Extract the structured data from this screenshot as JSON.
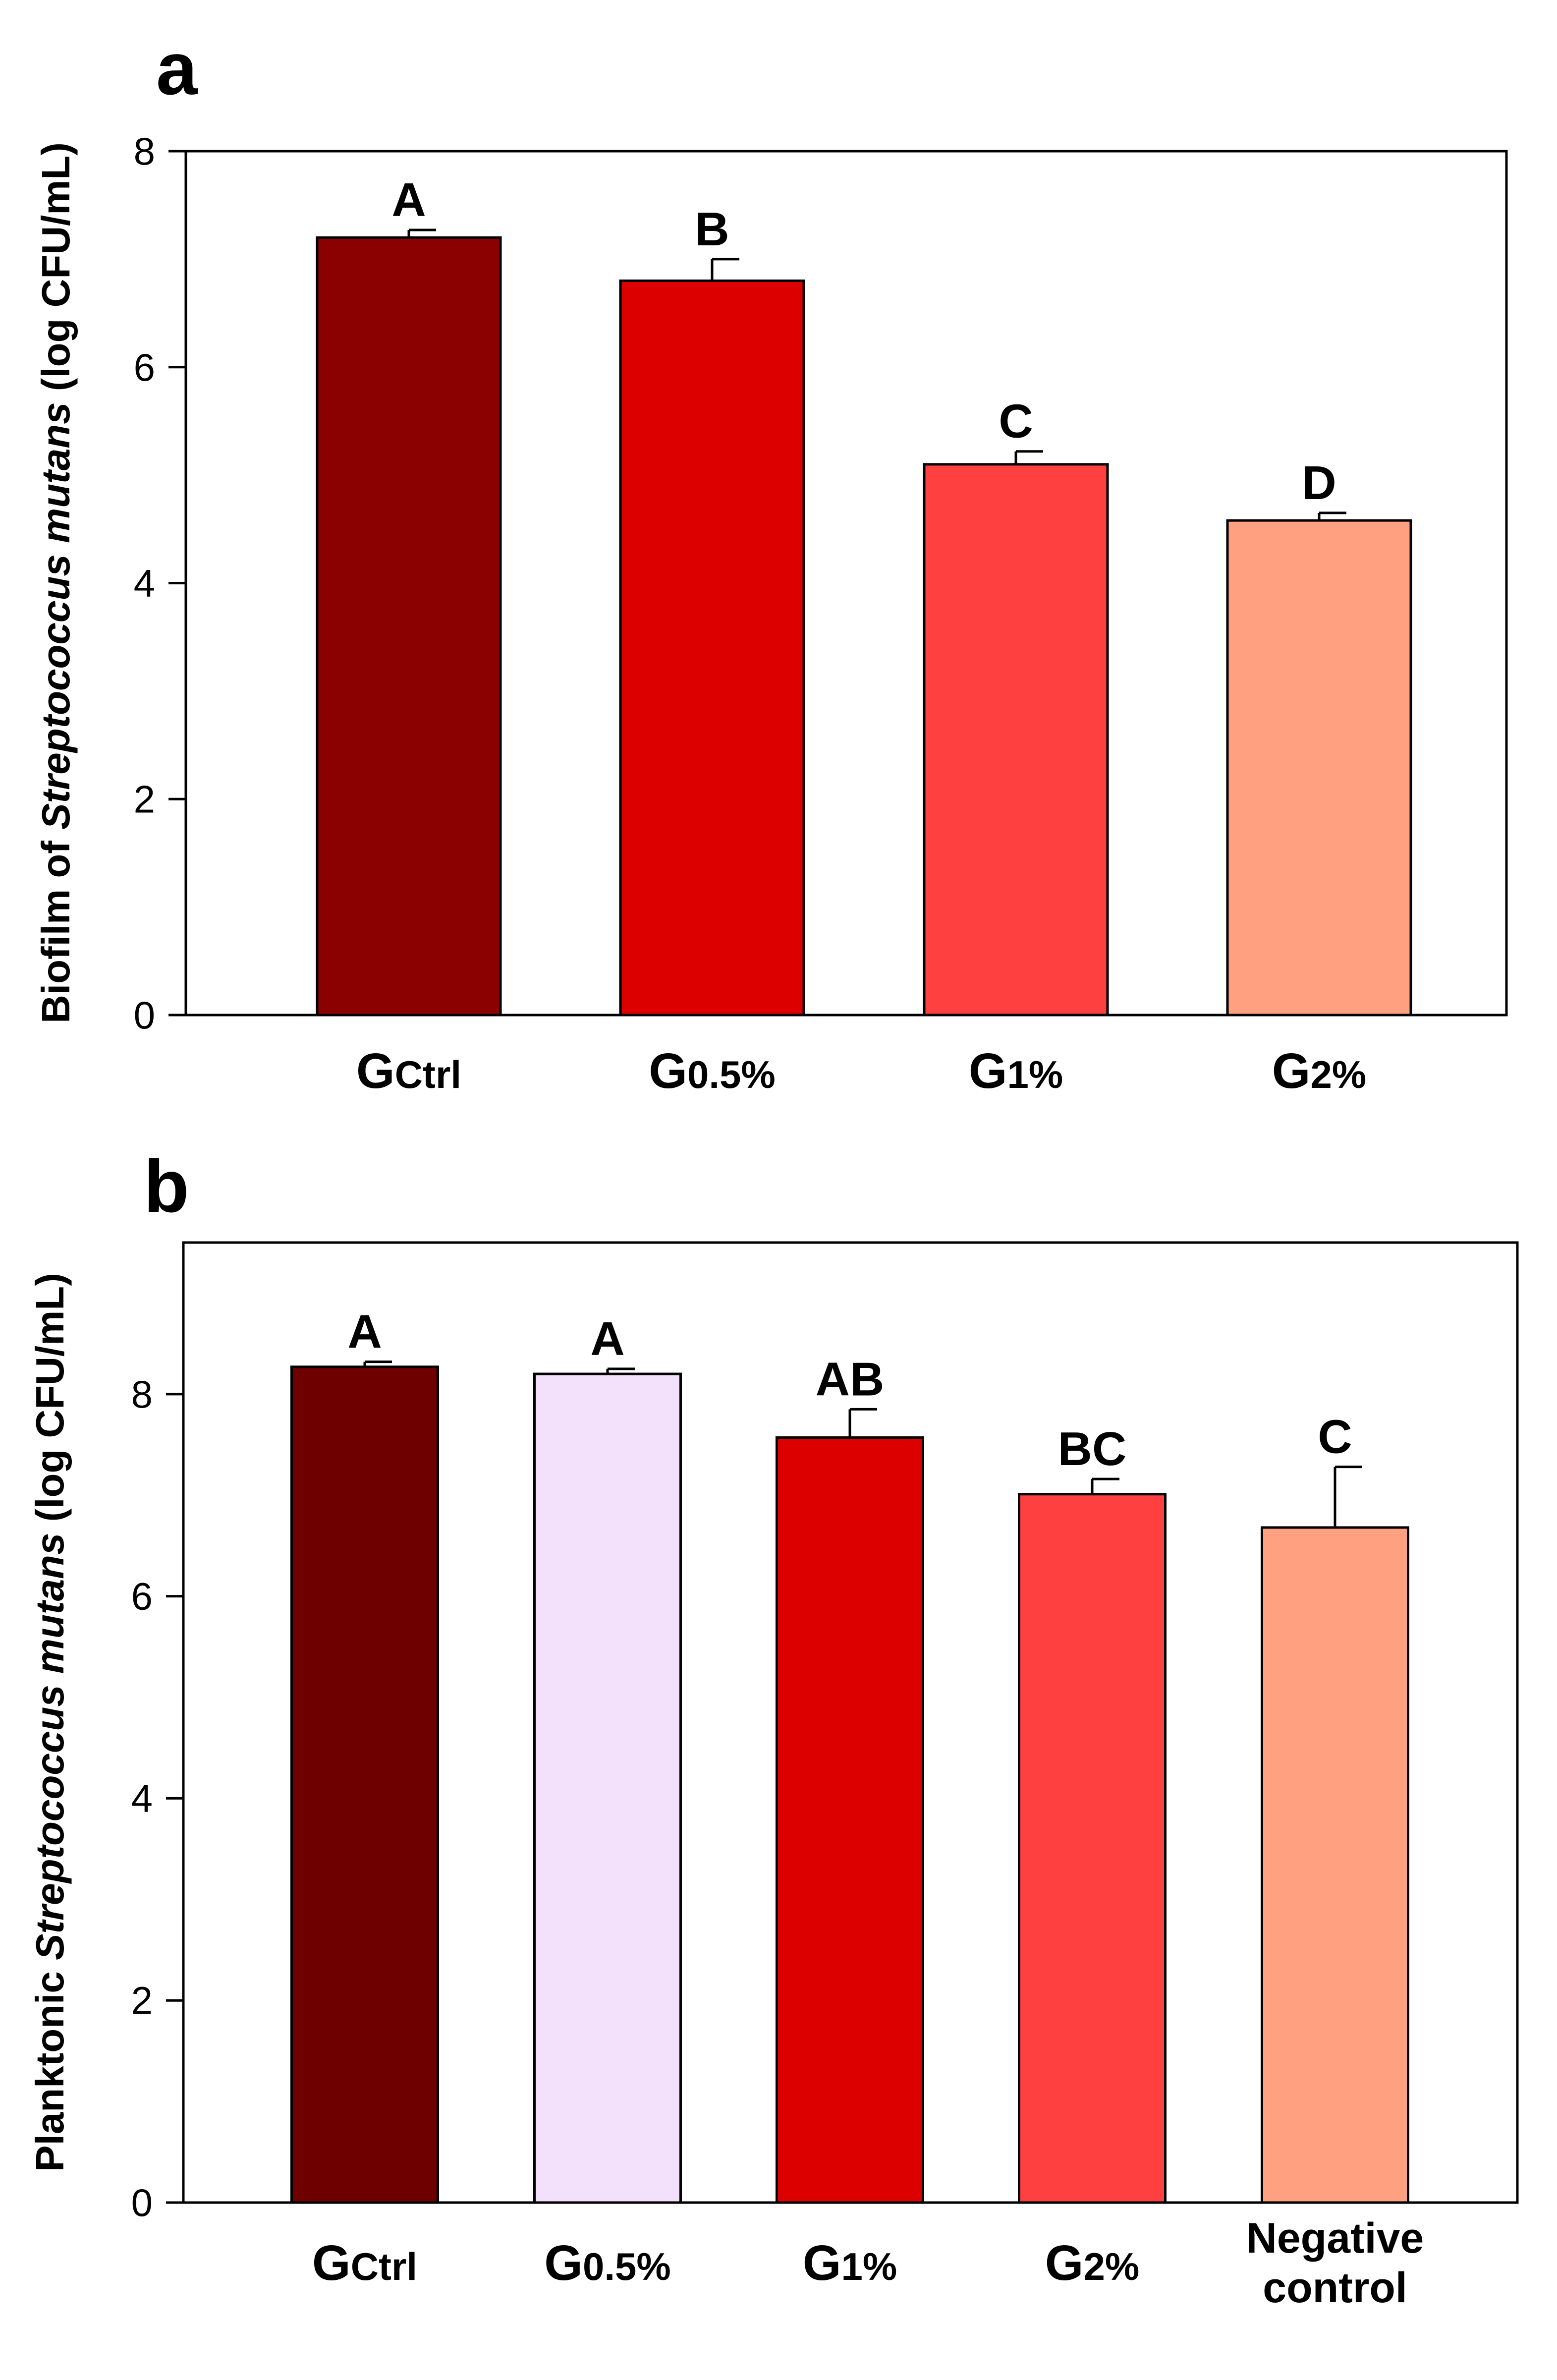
{
  "chart_data": [
    {
      "type": "bar",
      "panel": "a",
      "ylabel_parts": [
        "Biofilm of ",
        "Streptococcus mutans",
        " (log CFU/mL)"
      ],
      "ylim": [
        0,
        8
      ],
      "yticks": [
        0,
        2,
        4,
        6,
        8
      ],
      "categories": [
        {
          "main": "G",
          "sub": "Ctrl"
        },
        {
          "main": "G",
          "sub": "0.5%"
        },
        {
          "main": "G",
          "sub": "1%"
        },
        {
          "main": "G",
          "sub": "2%"
        }
      ],
      "values": [
        7.2,
        6.8,
        5.1,
        4.58
      ],
      "errors": [
        0.07,
        0.2,
        0.12,
        0.07
      ],
      "significance": [
        "A",
        "B",
        "C",
        "D"
      ],
      "colors": [
        "#8b0000",
        "#dd0000",
        "#ff4040",
        "#ffa080"
      ]
    },
    {
      "type": "bar",
      "panel": "b",
      "ylabel_parts": [
        "Planktonic ",
        "Streptococcus mutans",
        " (log CFU/mL)"
      ],
      "ylim": [
        0,
        9.5
      ],
      "yticks": [
        0,
        2,
        4,
        6,
        8
      ],
      "categories": [
        {
          "main": "G",
          "sub": "Ctrl"
        },
        {
          "main": "G",
          "sub": "0.5%"
        },
        {
          "main": "G",
          "sub": "1%"
        },
        {
          "main": "G",
          "sub": "2%"
        },
        {
          "lines": [
            "Negative",
            "control"
          ]
        }
      ],
      "values": [
        8.27,
        8.2,
        7.57,
        7.01,
        6.68
      ],
      "errors": [
        0.05,
        0.05,
        0.28,
        0.15,
        0.6
      ],
      "significance": [
        "A",
        "A",
        "AB",
        "BC",
        "C"
      ],
      "colors": [
        "#6e0000",
        "#f3e0fa",
        "#dd0000",
        "#ff4040",
        "#ffa080"
      ]
    }
  ]
}
